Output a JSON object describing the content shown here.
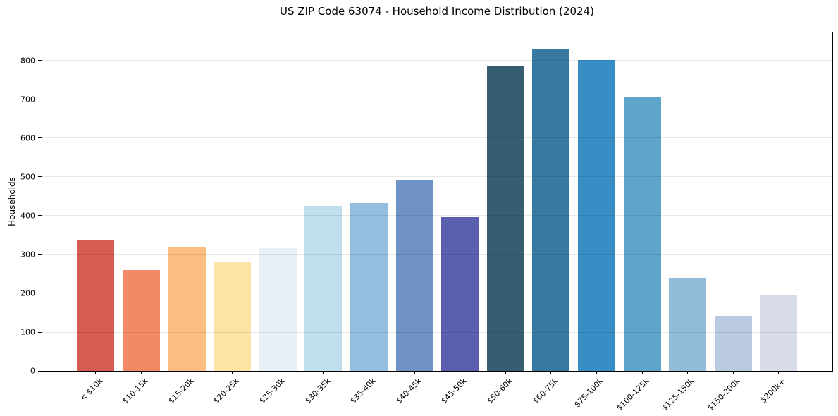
{
  "chart_data": {
    "type": "bar",
    "title": "US ZIP Code 63074 - Household Income Distribution (2024)",
    "xlabel": "",
    "ylabel": "Households",
    "ylim": [
      0,
      872
    ],
    "yticks": [
      0,
      100,
      200,
      300,
      400,
      500,
      600,
      700,
      800
    ],
    "grid": "horizontal-light-over-bars",
    "legend": "none",
    "categories": [
      "< $10k",
      "$10-15k",
      "$15-20k",
      "$20-25k",
      "$25-30k",
      "$30-35k",
      "$35-40k",
      "$40-45k",
      "$45-50k",
      "$50-60k",
      "$60-75k",
      "$75-100k",
      "$100-125k",
      "$125-150k",
      "$150-200k",
      "$200k+"
    ],
    "values": [
      338,
      259,
      319,
      281,
      316,
      425,
      433,
      492,
      396,
      787,
      830,
      801,
      706,
      239,
      141,
      194
    ],
    "bar_colors": [
      "#d65c52",
      "#f28a67",
      "#fcbd80",
      "#fce3a6",
      "#e6f0f5",
      "#c0dfed",
      "#94bedd",
      "#6e93c4",
      "#5a60ae",
      "#375e70",
      "#3779a1",
      "#378ec4",
      "#5da5cb",
      "#92bad9",
      "#b9cae1",
      "#d8dbe9"
    ],
    "axis_color": "#000000",
    "gridline_color": "#e8e8e8",
    "background_color": "#ffffff"
  }
}
